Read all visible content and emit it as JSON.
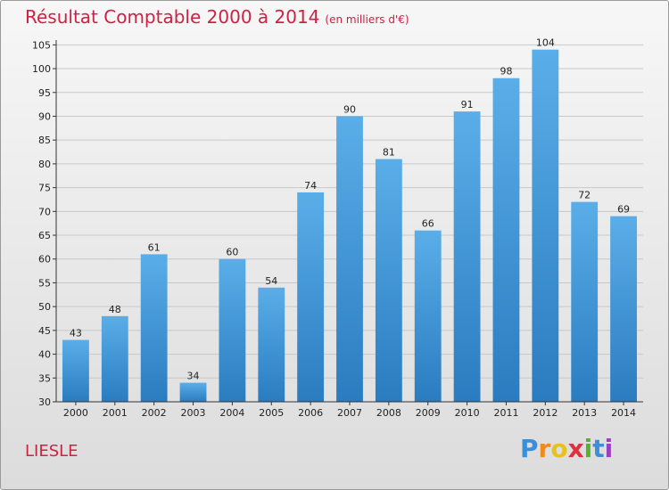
{
  "header": {
    "title": "Résultat Comptable 2000 à 2014",
    "subtitle": "(en milliers d'€)"
  },
  "footer": {
    "town": "LIESLE",
    "logo_letters": [
      "P",
      "r",
      "o",
      "x",
      "i",
      "t",
      "i"
    ],
    "logo_colors": [
      "#3a8fd8",
      "#f08a1c",
      "#e8c21c",
      "#e03040",
      "#5ab030",
      "#3a8fd8",
      "#9a40c0"
    ]
  },
  "chart_data": {
    "type": "bar",
    "categories": [
      "2000",
      "2001",
      "2002",
      "2003",
      "2004",
      "2005",
      "2006",
      "2007",
      "2008",
      "2009",
      "2010",
      "2011",
      "2012",
      "2013",
      "2014"
    ],
    "values": [
      43,
      48,
      61,
      34,
      60,
      54,
      74,
      90,
      81,
      66,
      91,
      98,
      104,
      72,
      69
    ],
    "yticks": [
      30,
      35,
      40,
      45,
      50,
      55,
      60,
      65,
      70,
      75,
      80,
      85,
      90,
      95,
      100,
      105
    ],
    "ylim": [
      30,
      106
    ],
    "grid": true,
    "bar_color_top": "#5aaee8",
    "bar_color_bottom": "#2a7cc0"
  }
}
